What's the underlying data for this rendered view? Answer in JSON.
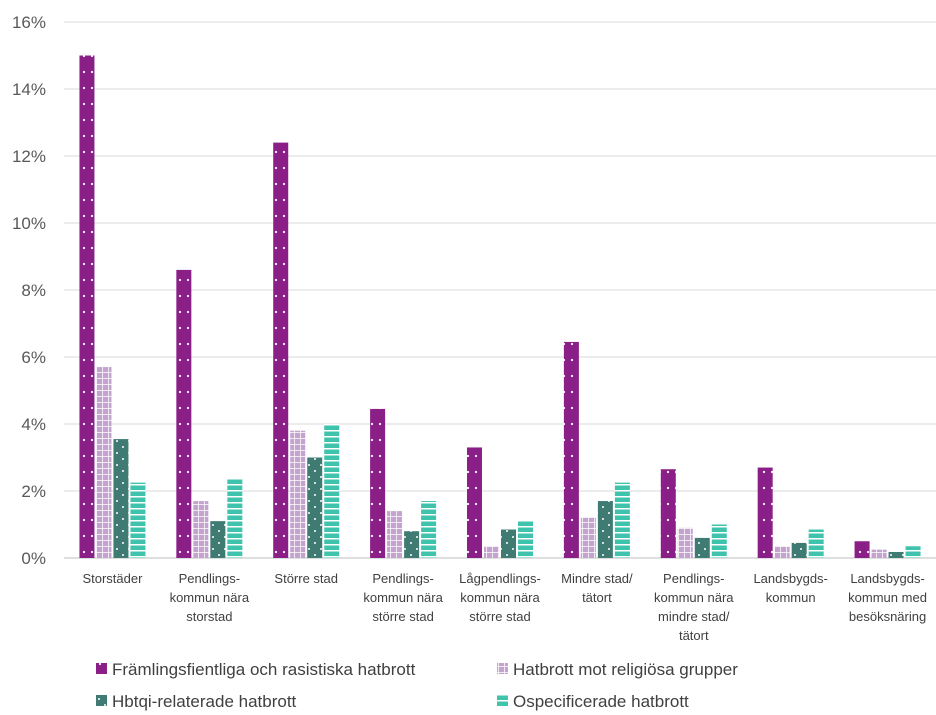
{
  "chart_data": {
    "type": "bar",
    "title": "",
    "xlabel": "",
    "ylabel": "",
    "ylim": [
      0,
      16
    ],
    "y_ticks": [
      "0%",
      "2%",
      "4%",
      "6%",
      "8%",
      "10%",
      "12%",
      "14%",
      "16%"
    ],
    "grid": "horizontal",
    "legend_position": "bottom",
    "categories": [
      [
        "Storstäder"
      ],
      [
        "Pendlings-",
        "kommun nära",
        "storstad"
      ],
      [
        "Större stad"
      ],
      [
        "Pendlings-",
        "kommun nära",
        "större stad"
      ],
      [
        "Lågpendlings-",
        "kommun nära",
        "större stad"
      ],
      [
        "Mindre stad/",
        "tätort"
      ],
      [
        "Pendlings-",
        "kommun nära",
        "mindre stad/",
        "tätort"
      ],
      [
        "Landsbygds-",
        "kommun"
      ],
      [
        "Landsbygds-",
        "kommun med",
        "besöksnäring"
      ]
    ],
    "series": [
      {
        "name": "Främlingsfientliga och rasistiska hatbrott",
        "color": "#8a1f87",
        "pattern": "dots",
        "values": [
          15.0,
          8.6,
          12.4,
          4.45,
          3.3,
          6.45,
          2.65,
          2.7,
          0.5
        ]
      },
      {
        "name": "Hatbrott mot religiösa grupper",
        "color": "#c4a3cf",
        "pattern": "grid",
        "values": [
          5.7,
          1.7,
          3.8,
          1.4,
          0.35,
          1.2,
          0.9,
          0.35,
          0.25
        ]
      },
      {
        "name": "Hbtqi-relaterade hatbrott",
        "color": "#3f7b73",
        "pattern": "diamond",
        "values": [
          3.55,
          1.1,
          3.0,
          0.8,
          0.85,
          1.7,
          0.6,
          0.45,
          0.18
        ]
      },
      {
        "name": "Ospecificerade hatbrott",
        "color": "#3fc3ad",
        "pattern": "hstripes",
        "values": [
          2.25,
          2.35,
          4.0,
          1.7,
          1.1,
          2.25,
          1.0,
          0.85,
          0.35
        ]
      }
    ]
  }
}
